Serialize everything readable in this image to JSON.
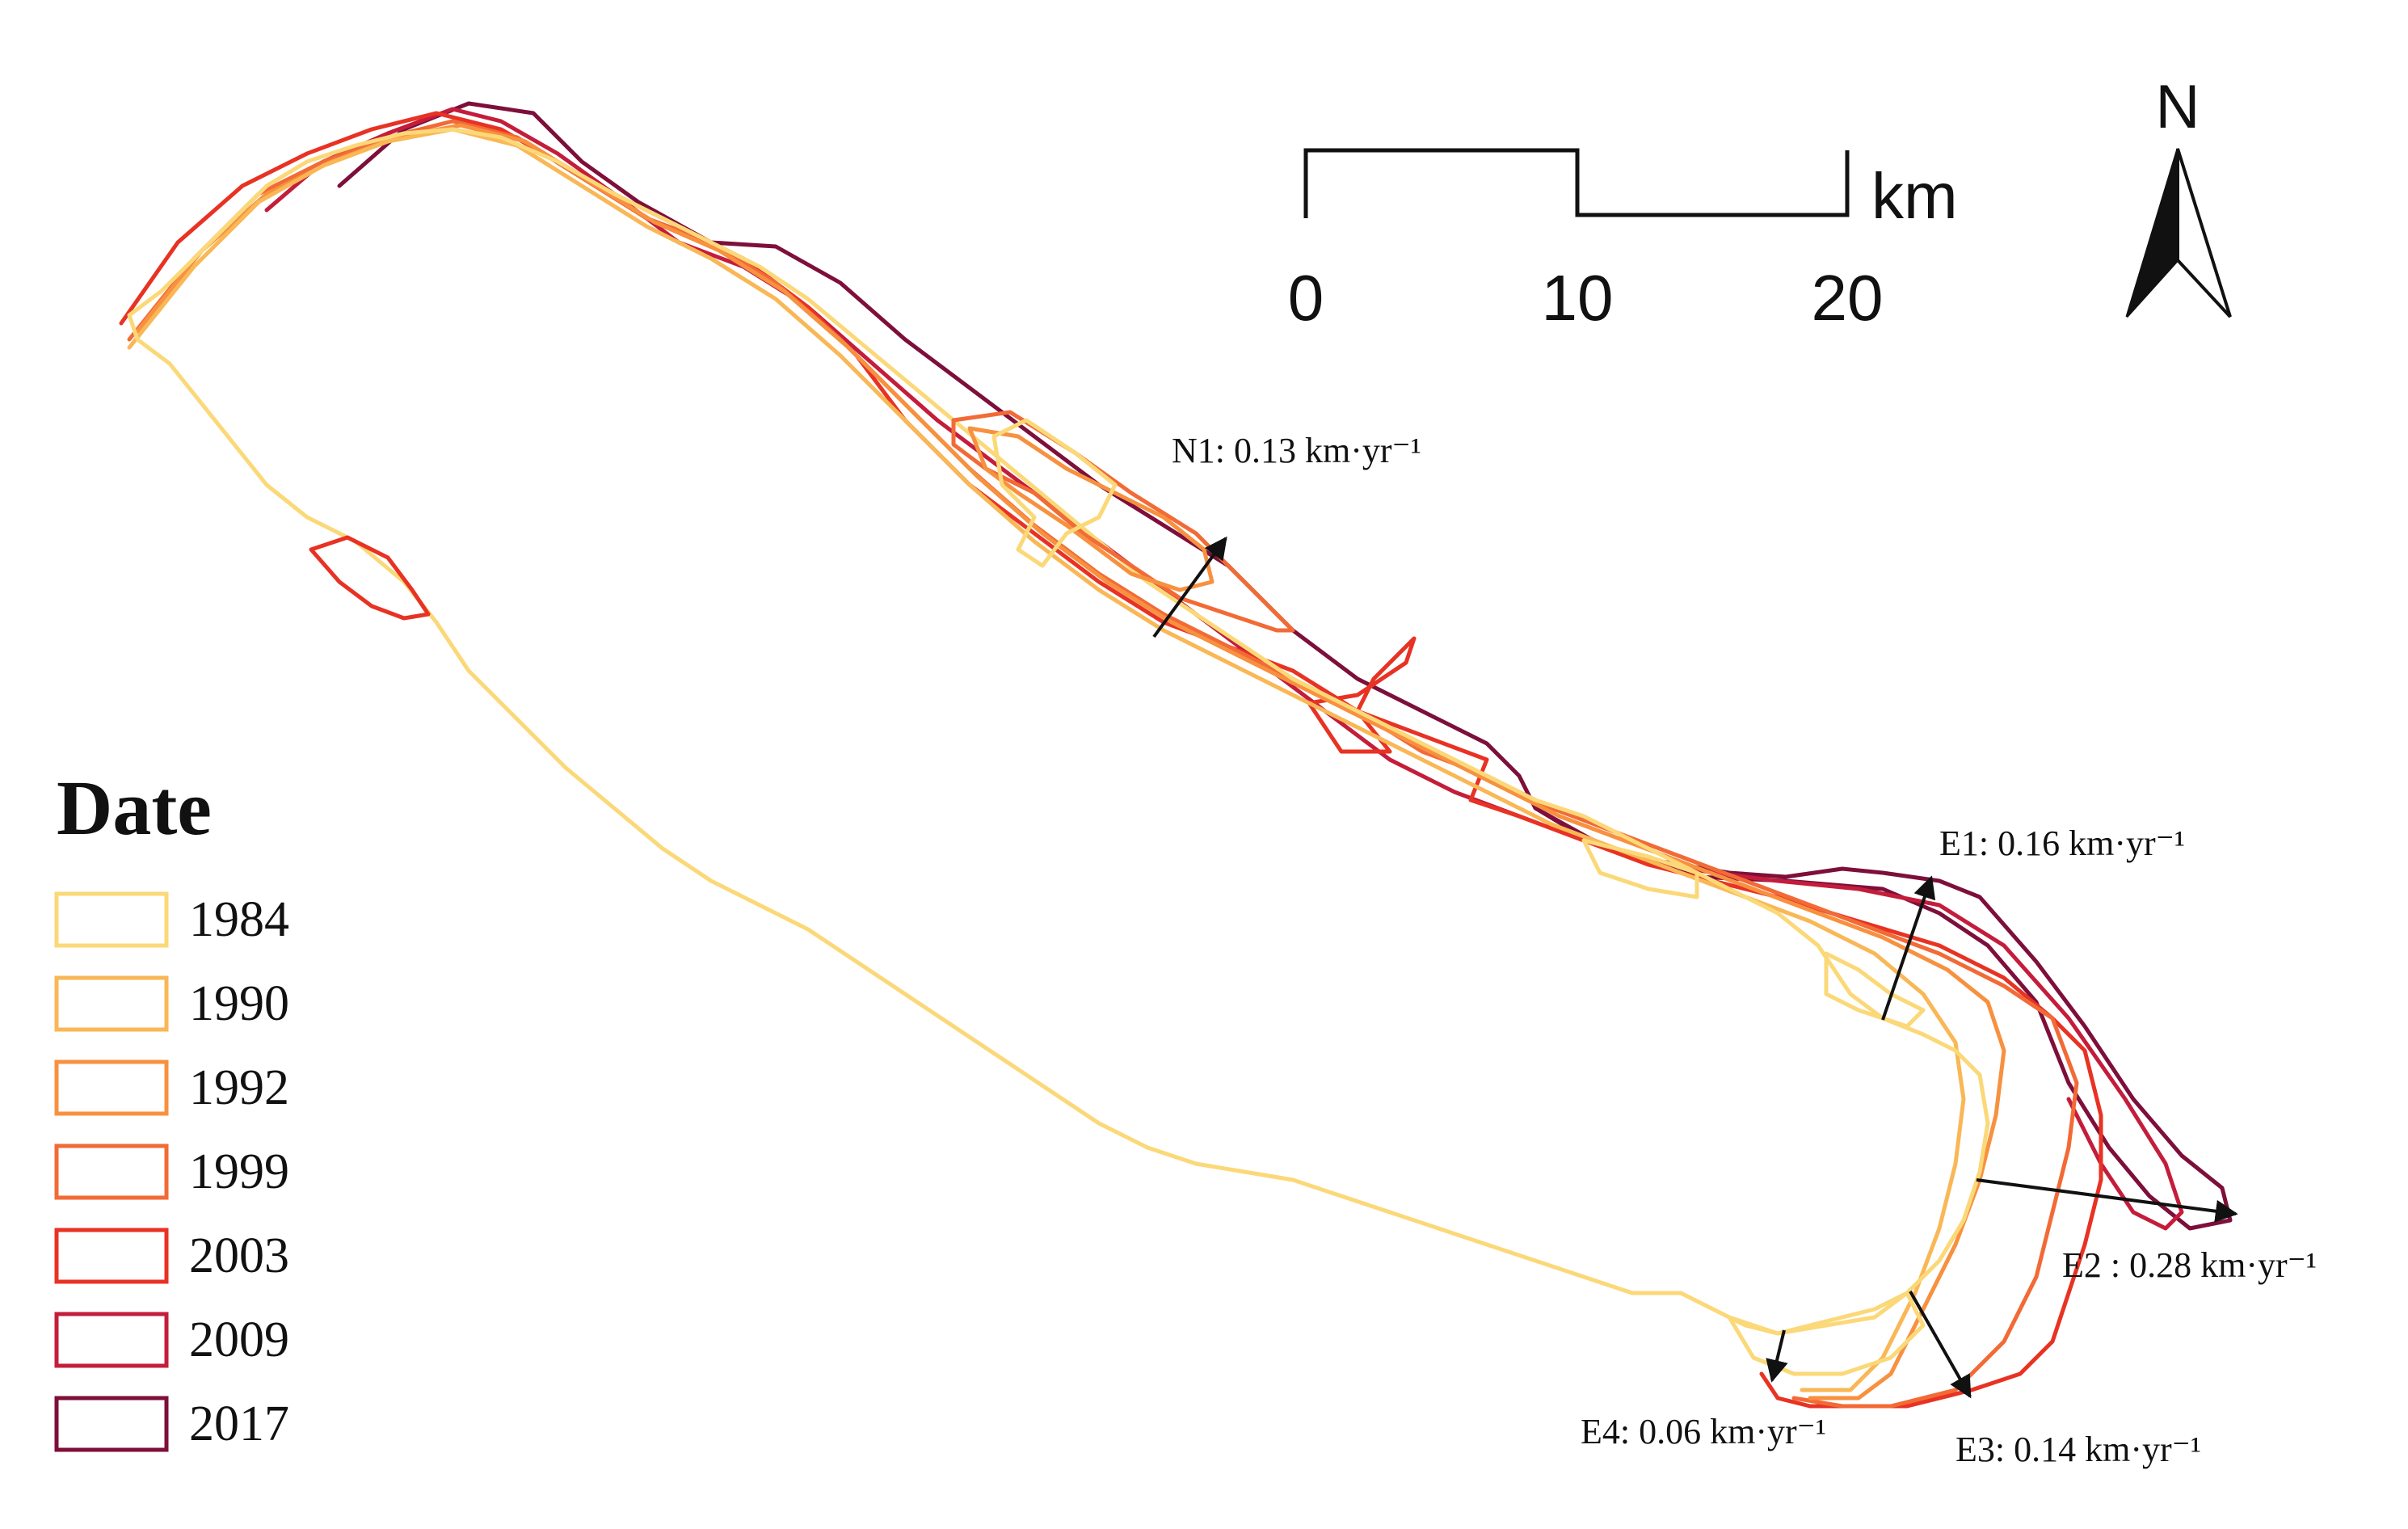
{
  "colors": {
    "y1984": "#fbd878",
    "y1990": "#f9b756",
    "y1992": "#f7913f",
    "y1999": "#f26a36",
    "y2003": "#e83223",
    "y2009": "#c41d3b",
    "y2017": "#7d0f3a",
    "arrow": "#111111"
  },
  "scale_bar": {
    "labels": [
      "0",
      "10",
      "20"
    ],
    "unit": "km"
  },
  "north_arrow": {
    "label": "N",
    "icon": "north-arrow-icon"
  },
  "legend": {
    "title": "Date",
    "items": [
      {
        "label": "1984",
        "color": "#fbd878"
      },
      {
        "label": "1990",
        "color": "#f9b756"
      },
      {
        "label": "1992",
        "color": "#f7913f"
      },
      {
        "label": "1999",
        "color": "#f26a36"
      },
      {
        "label": "2003",
        "color": "#e83223"
      },
      {
        "label": "2009",
        "color": "#c41d3b"
      },
      {
        "label": "2017",
        "color": "#7d0f3a"
      }
    ]
  },
  "rates": {
    "n1": "N1: 0.13 km·yr⁻¹",
    "e1": "E1: 0.16 km·yr⁻¹",
    "e2": "E2 : 0.28 km·yr⁻¹",
    "e3": "E3: 0.14 km·yr⁻¹",
    "e4": "E4: 0.06 km·yr⁻¹"
  }
}
